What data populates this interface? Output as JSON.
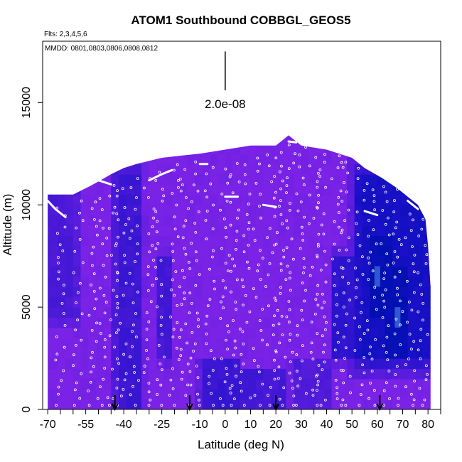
{
  "chart_data": {
    "type": "heatmap",
    "title": "ATOM1 Southbound COBBGL_GEOS5",
    "flights_note": "Flts: 2,3,4,5,6",
    "dates_note": "MMDD: 0801,0803,0806,0808,0812",
    "xlabel": "Latitude (deg N)",
    "ylabel": "Altitude (m)",
    "xlim": [
      -72,
      85
    ],
    "ylim": [
      0,
      18000
    ],
    "xticks": [
      -70,
      -55,
      -40,
      -25,
      -10,
      0,
      10,
      20,
      30,
      40,
      50,
      60,
      70,
      80
    ],
    "xtick_labels": [
      "-70",
      "-55",
      "-40",
      "-25",
      "-10",
      "0",
      "10",
      "20",
      "30",
      "40",
      "50",
      "60",
      "70",
      "80"
    ],
    "yticks": [
      0,
      5000,
      10000,
      15000
    ],
    "ytick_labels": [
      "0",
      "5000",
      "10000",
      "15000"
    ],
    "scale_bar": {
      "label": "2.0e-08",
      "lat": 0,
      "alt_bottom": 15600,
      "alt_top": 17500
    },
    "arrows_lat": [
      -43.5,
      -14,
      20,
      61
    ],
    "altitude_envelope": [
      [
        -70,
        10500
      ],
      [
        -60,
        10500
      ],
      [
        -52,
        11000
      ],
      [
        -45,
        11500
      ],
      [
        -40,
        11800
      ],
      [
        -35,
        12000
      ],
      [
        -25,
        12300
      ],
      [
        -18,
        12400
      ],
      [
        -10,
        12500
      ],
      [
        0,
        12700
      ],
      [
        10,
        12900
      ],
      [
        20,
        12900
      ],
      [
        25,
        13400
      ],
      [
        30,
        12900
      ],
      [
        40,
        12700
      ],
      [
        50,
        12300
      ],
      [
        55,
        11800
      ],
      [
        62,
        11300
      ],
      [
        68,
        10800
      ],
      [
        72,
        10400
      ],
      [
        76,
        10000
      ],
      [
        79,
        9300
      ],
      [
        80,
        8000
      ],
      [
        81,
        6000
      ],
      [
        81,
        0
      ]
    ],
    "colors": {
      "background_fill": "#7a22e6",
      "dark_fill": "#1a10c8",
      "deepest_fill": "#0010b0",
      "light_spot": "#3a6ad8",
      "points": "#ffffff"
    },
    "dark_regions": [
      {
        "lat": [
          -42,
          -34
        ],
        "alt": [
          0,
          11000
        ],
        "strength": 0.45
      },
      {
        "lat": [
          -22,
          -26
        ],
        "alt": [
          3000,
          7000
        ],
        "strength": 0.4
      },
      {
        "lat": [
          -8,
          4
        ],
        "alt": [
          0,
          2000
        ],
        "strength": 0.5
      },
      {
        "lat": [
          8,
          22
        ],
        "alt": [
          0,
          1500
        ],
        "strength": 0.4
      },
      {
        "lat": [
          44,
          50
        ],
        "alt": [
          3000,
          7000
        ],
        "strength": 0.55
      },
      {
        "lat": [
          54,
          80
        ],
        "alt": [
          3000,
          11000
        ],
        "strength": 0.75
      },
      {
        "lat": [
          58,
          64
        ],
        "alt": [
          5000,
          8000
        ],
        "strength": 0.95
      },
      {
        "lat": [
          64,
          72
        ],
        "alt": [
          3000,
          6500
        ],
        "strength": 0.95
      },
      {
        "lat": [
          -72,
          -60
        ],
        "alt": [
          5000,
          10500
        ],
        "strength": 0.35
      },
      {
        "lat": [
          28,
          40
        ],
        "alt": [
          0,
          2000
        ],
        "strength": 0.3
      }
    ],
    "flight_tracks": [
      [
        [
          -70,
          10200
        ],
        [
          -67,
          9800
        ],
        [
          -63,
          9400
        ]
      ],
      [
        [
          -50,
          11200
        ],
        [
          -45,
          11000
        ]
      ],
      [
        [
          -30,
          11200
        ],
        [
          -25,
          11500
        ],
        [
          -21,
          11700
        ]
      ],
      [
        [
          -10,
          12000
        ],
        [
          -7,
          12000
        ]
      ],
      [
        [
          0,
          10400
        ],
        [
          5,
          10400
        ]
      ],
      [
        [
          15,
          10000
        ],
        [
          20,
          9900
        ]
      ],
      [
        [
          25,
          13100
        ],
        [
          28,
          13050
        ]
      ],
      [
        [
          55,
          9700
        ],
        [
          60,
          9500
        ]
      ],
      [
        [
          72,
          10200
        ],
        [
          76,
          9800
        ]
      ]
    ]
  }
}
